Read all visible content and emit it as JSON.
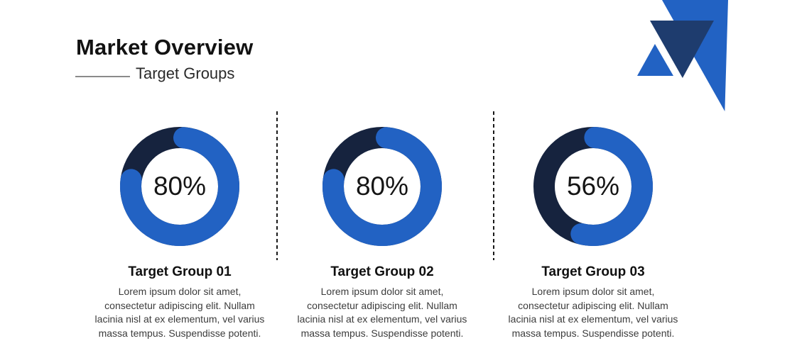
{
  "header": {
    "title": "Market Overview",
    "subtitle": "Target Groups"
  },
  "logo": {
    "shapes": [
      "triangle-down-large-blue",
      "triangle-down-navy",
      "triangle-up-small-blue"
    ]
  },
  "colors": {
    "accent_blue": "#2262c3",
    "donut_track_navy": "#16233e",
    "logo_navy": "#1e3c6e",
    "title_text": "#121212",
    "body_text": "#3c3c3c",
    "divider": "#1a1a1a",
    "subtitle_line": "#8a8a8a"
  },
  "groups": [
    {
      "heading": "Target Group 01",
      "description": "Lorem ipsum dolor sit amet,\nconsectetur adipiscing elit. Nullam\nlacinia nisl at ex elementum, vel varius\nmassa tempus. Suspendisse potenti."
    },
    {
      "heading": "Target Group 02",
      "description": "Lorem ipsum dolor sit amet,\nconsectetur adipiscing elit. Nullam\nlacinia nisl at ex elementum, vel varius\nmassa tempus. Suspendisse potenti."
    },
    {
      "heading": "Target Group 03",
      "description": "Lorem ipsum dolor sit amet,\nconsectetur adipiscing elit. Nullam\nlacinia nisl at ex elementum, vel varius\nmassa tempus. Suspendisse potenti."
    }
  ],
  "chart_data": [
    {
      "type": "pie",
      "variant": "donut",
      "title": "Target Group 01",
      "unit": "%",
      "center_label": "80%",
      "series": [
        {
          "name": "value",
          "value": 80
        },
        {
          "name": "remainder",
          "value": 20
        }
      ],
      "colors": {
        "arc": "#2262c3",
        "track": "#16233e"
      },
      "arc_start_deg": 5,
      "arc_sweep_deg": 273
    },
    {
      "type": "pie",
      "variant": "donut",
      "title": "Target Group 02",
      "unit": "%",
      "center_label": "80%",
      "series": [
        {
          "name": "value",
          "value": 80
        },
        {
          "name": "remainder",
          "value": 20
        }
      ],
      "colors": {
        "arc": "#2262c3",
        "track": "#16233e"
      },
      "arc_start_deg": 5,
      "arc_sweep_deg": 273
    },
    {
      "type": "pie",
      "variant": "donut",
      "title": "Target Group 03",
      "unit": "%",
      "center_label": "56%",
      "series": [
        {
          "name": "value",
          "value": 56
        },
        {
          "name": "remainder",
          "value": 44
        }
      ],
      "colors": {
        "arc": "#2262c3",
        "track": "#16233e"
      },
      "arc_start_deg": 2,
      "arc_sweep_deg": 192
    }
  ]
}
